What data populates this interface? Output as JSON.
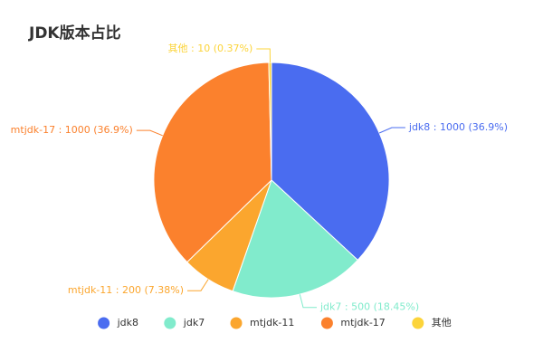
{
  "chart_data": {
    "type": "pie",
    "title": "JDK版本占比",
    "slices": [
      {
        "name": "jdk8",
        "value": 1000,
        "percent_label": "36.9%",
        "color": "#4a6cf0"
      },
      {
        "name": "jdk7",
        "value": 500,
        "percent_label": "18.45%",
        "color": "#81ebcc"
      },
      {
        "name": "mtjdk-11",
        "value": 200,
        "percent_label": "7.38%",
        "color": "#fba62e"
      },
      {
        "name": "mtjdk-17",
        "value": 1000,
        "percent_label": "36.9%",
        "color": "#fb812d"
      },
      {
        "name": "其他",
        "value": 10,
        "percent_label": "0.37%",
        "color": "#fcd43a"
      }
    ],
    "legend_position": "bottom-center",
    "label_format": "{name} : {value} ({percent})"
  }
}
